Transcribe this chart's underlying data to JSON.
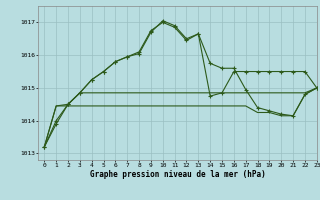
{
  "title": "Graphe pression niveau de la mer (hPa)",
  "bg_color": "#b8dde0",
  "grid_color": "#9bbfc2",
  "line_color": "#2d5a1b",
  "xlim": [
    -0.5,
    23
  ],
  "ylim": [
    1012.8,
    1017.5
  ],
  "yticks": [
    1013,
    1014,
    1015,
    1016,
    1017
  ],
  "xticks": [
    0,
    1,
    2,
    3,
    4,
    5,
    6,
    7,
    8,
    9,
    10,
    11,
    12,
    13,
    14,
    15,
    16,
    17,
    18,
    19,
    20,
    21,
    22,
    23
  ],
  "series1": [
    1013.2,
    1013.9,
    1014.5,
    1014.85,
    1015.25,
    1015.5,
    1015.8,
    1015.95,
    1016.05,
    1016.7,
    1017.05,
    1016.9,
    1016.5,
    1016.65,
    1015.75,
    1015.6,
    1015.6,
    1014.95,
    1014.4,
    1014.3,
    1014.2,
    1014.15,
    1014.8,
    1015.0
  ],
  "series2": [
    1013.2,
    1014.0,
    1014.5,
    1014.85,
    1015.25,
    1015.5,
    1015.8,
    1015.95,
    1016.1,
    1016.75,
    1017.0,
    1016.85,
    1016.45,
    1016.65,
    1014.75,
    1014.85,
    1015.5,
    1015.5,
    1015.5,
    1015.5,
    1015.5,
    1015.5,
    1015.5,
    1015.0
  ],
  "series3": [
    1013.2,
    1014.45,
    1014.5,
    1014.85,
    1014.85,
    1014.85,
    1014.85,
    1014.85,
    1014.85,
    1014.85,
    1014.85,
    1014.85,
    1014.85,
    1014.85,
    1014.85,
    1014.85,
    1014.85,
    1014.85,
    1014.85,
    1014.85,
    1014.85,
    1014.85,
    1014.85,
    1015.0
  ],
  "series4": [
    1013.2,
    1014.45,
    1014.45,
    1014.45,
    1014.45,
    1014.45,
    1014.45,
    1014.45,
    1014.45,
    1014.45,
    1014.45,
    1014.45,
    1014.45,
    1014.45,
    1014.45,
    1014.45,
    1014.45,
    1014.45,
    1014.25,
    1014.25,
    1014.15,
    1014.15,
    1014.8,
    1015.0
  ]
}
